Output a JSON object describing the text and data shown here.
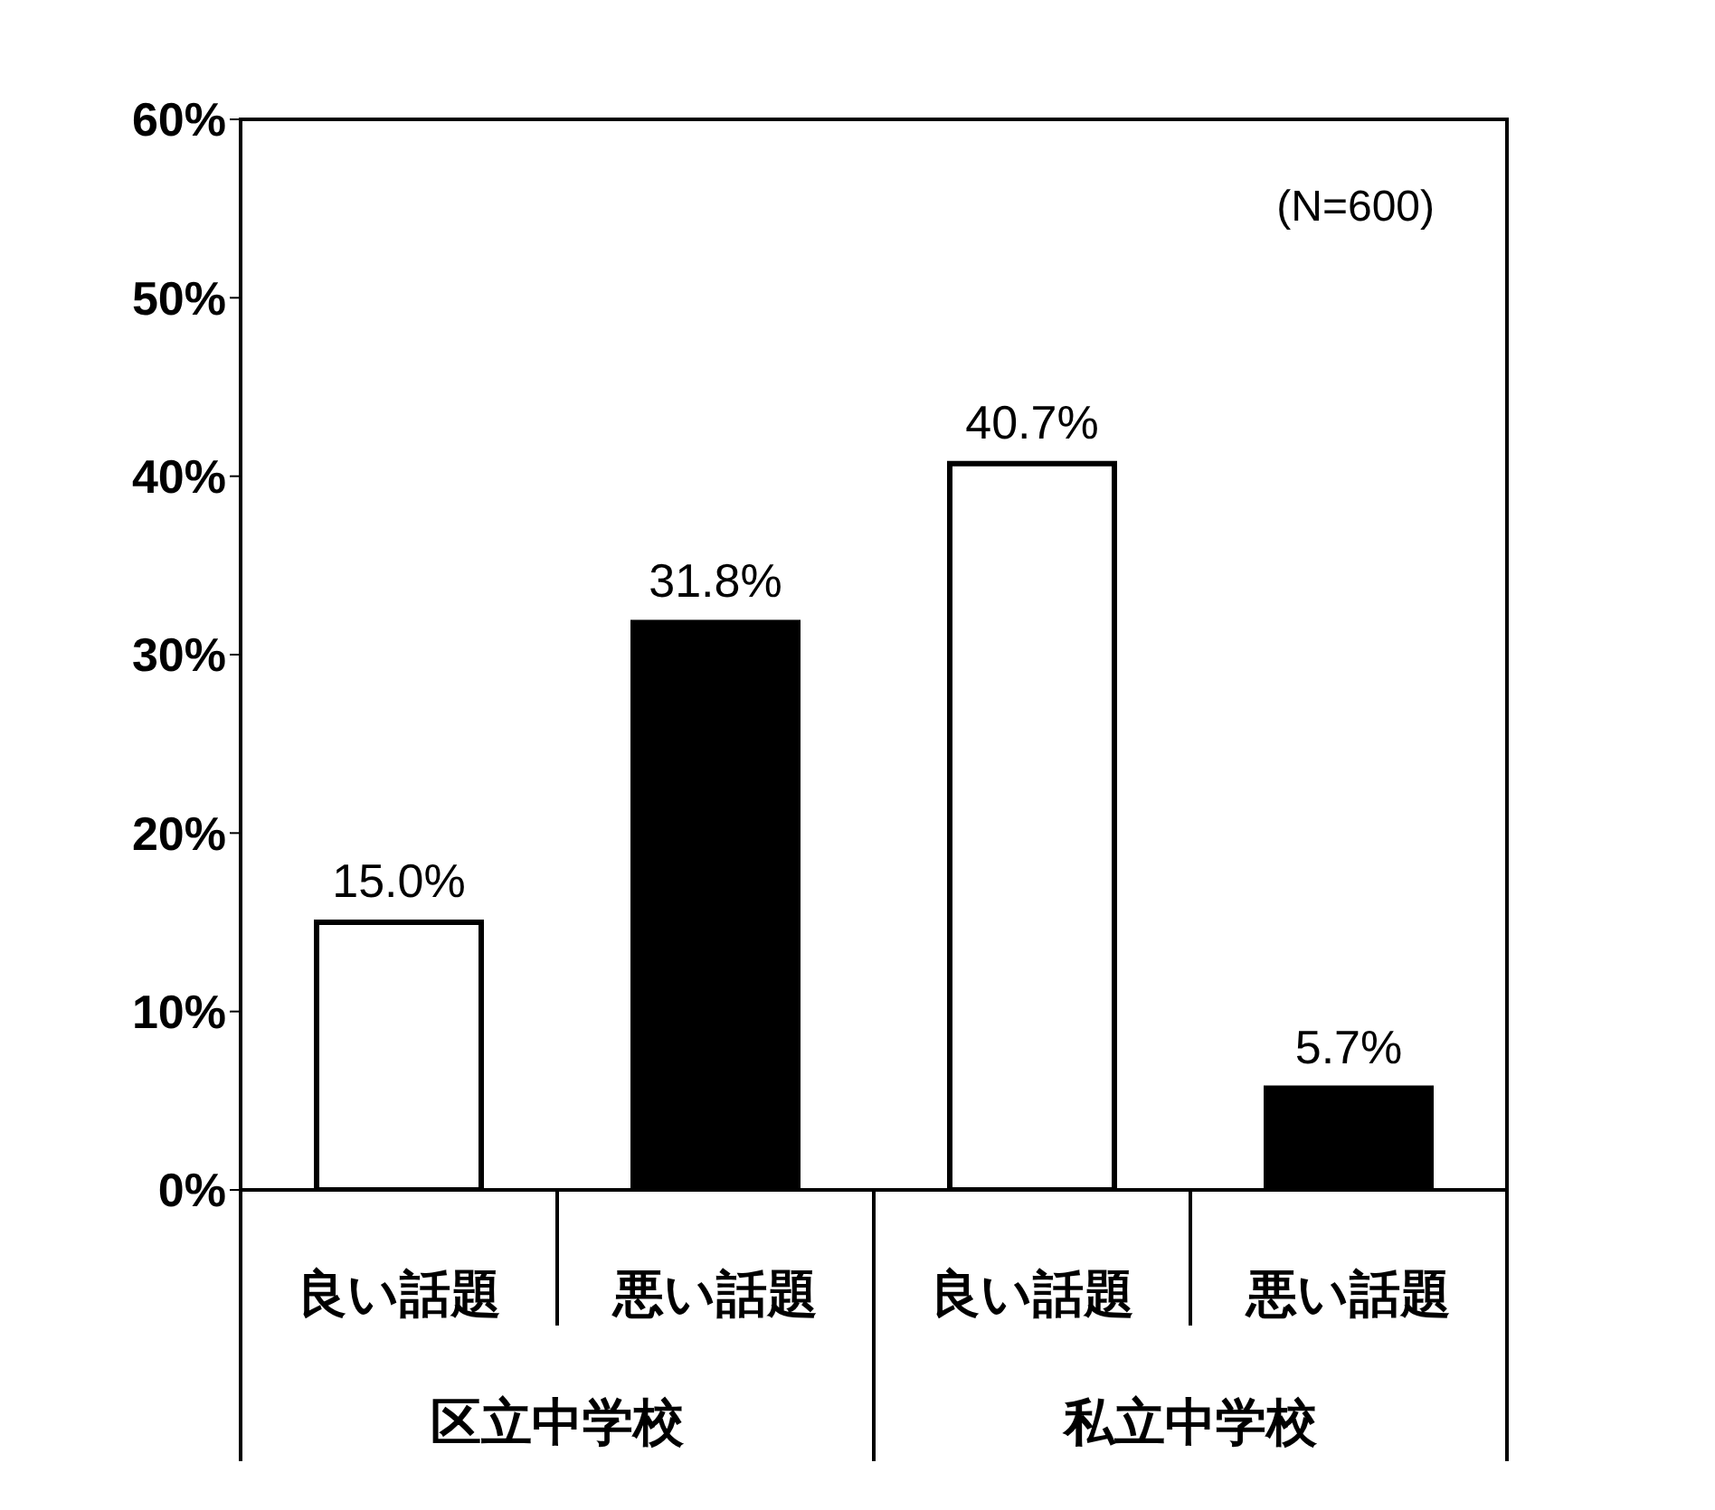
{
  "chart_data": {
    "type": "bar",
    "categories": [
      "良い話題",
      "悪い話題",
      "良い話題",
      "悪い話題"
    ],
    "values": [
      15.0,
      31.8,
      40.7,
      5.7
    ],
    "colors": [
      "#ffffff",
      "#000000",
      "#ffffff",
      "#000000"
    ],
    "value_labels": [
      "15.0%",
      "31.8%",
      "40.7%",
      "5.7%"
    ],
    "ylim": [
      0,
      60
    ],
    "yticks": [
      {
        "value": 0,
        "label": "0%"
      },
      {
        "value": 10,
        "label": "10%"
      },
      {
        "value": 20,
        "label": "20%"
      },
      {
        "value": 30,
        "label": "30%"
      },
      {
        "value": 40,
        "label": "40%"
      },
      {
        "value": 50,
        "label": "50%"
      },
      {
        "value": 60,
        "label": "60%"
      }
    ],
    "annotations": [
      "(N=600)",
      "区立中学校",
      "私立中学校"
    ],
    "grid": false,
    "legend": false
  }
}
